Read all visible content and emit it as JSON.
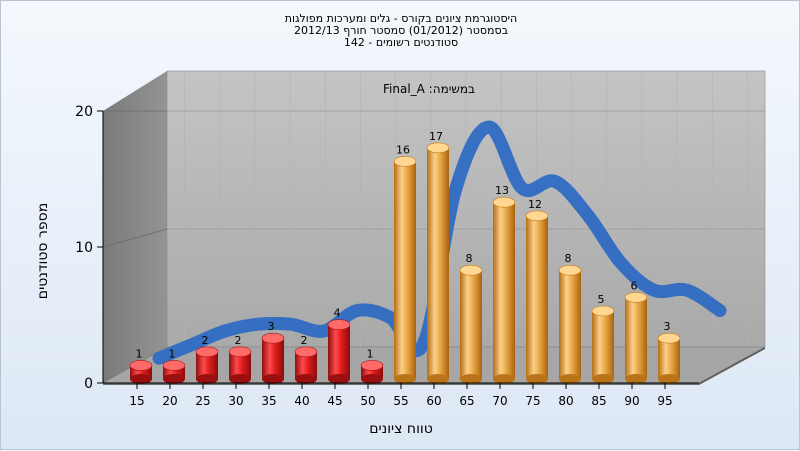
{
  "title_lines": [
    "היסטוגרמת ציונים בקורס - גלים ומערכות מפולגות",
    "בסמסטר (01/2012) סמסטר חורף 2012/13",
    "סטודנטים רשומים - 142"
  ],
  "annotation": "Final_A :במשימה",
  "chart_data": {
    "type": "bar",
    "title": "היסטוגרמת ציונים בקורס - גלים ומערכות מפולגות",
    "xlabel": "טווח ציונים",
    "ylabel": "מספר סטודנטים",
    "ylim": [
      0,
      20
    ],
    "yticks": [
      "0",
      "10",
      "20"
    ],
    "categories": [
      "15",
      "20",
      "25",
      "30",
      "35",
      "40",
      "45",
      "50",
      "55",
      "60",
      "65",
      "70",
      "75",
      "80",
      "85",
      "90",
      "95"
    ],
    "x_tick_labels": [
      "15",
      "20",
      "25",
      "30",
      "35",
      "40",
      "45",
      "50",
      "55",
      "60",
      "65",
      "70",
      "75",
      "80",
      "85",
      "90",
      "95"
    ],
    "bars": [
      {
        "x": 15,
        "value": 1,
        "label": "1",
        "color": "#d81e1e"
      },
      {
        "x": 20,
        "value": 1,
        "label": "1",
        "color": "#d81e1e"
      },
      {
        "x": 25,
        "value": 2,
        "label": "2",
        "color": "#d81e1e"
      },
      {
        "x": 30,
        "value": 2,
        "label": "2",
        "color": "#d81e1e"
      },
      {
        "x": 35,
        "value": 3,
        "label": "3",
        "color": "#d81e1e"
      },
      {
        "x": 40,
        "value": 2,
        "label": "2",
        "color": "#d81e1e"
      },
      {
        "x": 45,
        "value": 4,
        "label": "4",
        "color": "#d81e1e"
      },
      {
        "x": 50,
        "value": 1,
        "label": "1",
        "color": "#d81e1e"
      },
      {
        "x": 55,
        "value": 16,
        "label": "16",
        "color": "#e9a847"
      },
      {
        "x": 60,
        "value": 17,
        "label": "17",
        "color": "#e9a847"
      },
      {
        "x": 65,
        "value": 8,
        "label": "8",
        "color": "#e9a847"
      },
      {
        "x": 70,
        "value": 13,
        "label": "13",
        "color": "#e9a847"
      },
      {
        "x": 75,
        "value": 12,
        "label": "12",
        "color": "#e9a847"
      },
      {
        "x": 80,
        "value": 8,
        "label": "8",
        "color": "#e9a847"
      },
      {
        "x": 85,
        "value": 5,
        "label": "5",
        "color": "#e9a847"
      },
      {
        "x": 90,
        "value": 6,
        "label": "6",
        "color": "#e9a847"
      },
      {
        "x": 95,
        "value": 3,
        "label": "3",
        "color": "#e9a847"
      }
    ],
    "trend_curve": {
      "color": "#2f6bc2",
      "points": [
        [
          15,
          0.5
        ],
        [
          20,
          1.5
        ],
        [
          25,
          2.5
        ],
        [
          30,
          3.0
        ],
        [
          35,
          3.0
        ],
        [
          40,
          2.5
        ],
        [
          45,
          4.0
        ],
        [
          50,
          3.5
        ],
        [
          55,
          1.5
        ],
        [
          60,
          13.0
        ],
        [
          65,
          17.5
        ],
        [
          70,
          13.0
        ],
        [
          75,
          13.5
        ],
        [
          80,
          11.0
        ],
        [
          85,
          7.5
        ],
        [
          90,
          5.5
        ],
        [
          95,
          5.5
        ],
        [
          100,
          4.0
        ]
      ]
    },
    "grid": true,
    "legend": "none"
  }
}
